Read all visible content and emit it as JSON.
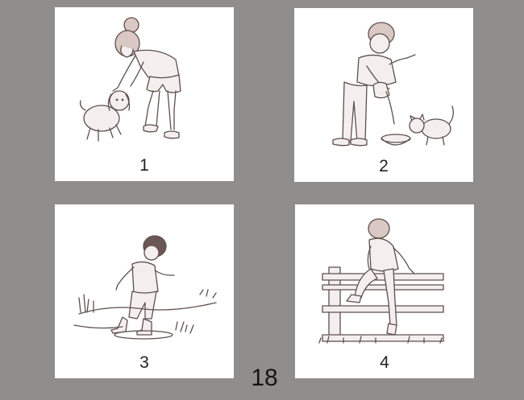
{
  "cards": [
    {
      "number": "1",
      "scene": "girl-petting-dog"
    },
    {
      "number": "2",
      "scene": "boy-pouring-milk-for-cat"
    },
    {
      "number": "3",
      "scene": "child-stepping-in-puddle"
    },
    {
      "number": "4",
      "scene": "boy-climbing-fence"
    }
  ],
  "page": {
    "number": "18"
  }
}
